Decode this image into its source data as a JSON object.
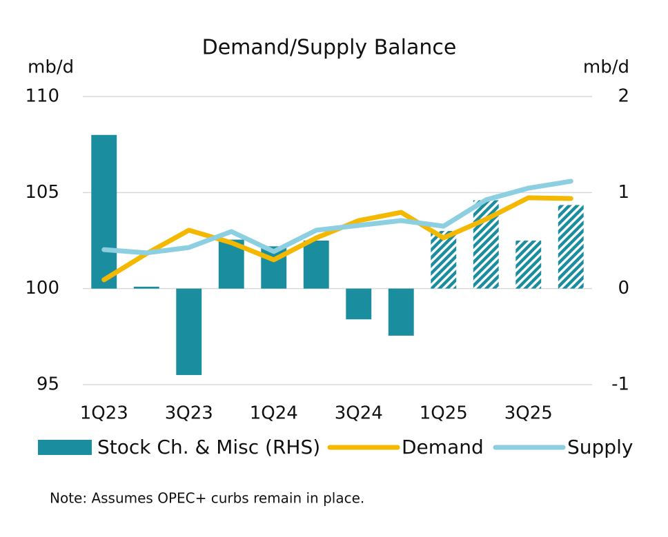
{
  "chart_data": {
    "type": "combo",
    "title": "Demand/Supply Balance",
    "ylabel": "mb/d",
    "y2label": "mb/d",
    "note": "Note: Assumes OPEC+ curbs remain in place.",
    "categories": [
      "1Q23",
      null,
      "3Q23",
      null,
      "1Q24",
      null,
      "3Q24",
      null,
      "1Q25",
      null,
      "3Q25",
      null
    ],
    "ylim": [
      95,
      110
    ],
    "yticks": [
      95,
      100,
      105,
      110
    ],
    "y2lim": [
      -1,
      2
    ],
    "y2ticks": [
      -1,
      0,
      1,
      2
    ],
    "grid": true,
    "legend": "bottom",
    "series": [
      {
        "name": "Stock Ch. & Misc (RHS)",
        "type": "bar",
        "axis": "y2",
        "color": "#1a8e9f",
        "values": [
          1.6,
          0.02,
          -0.9,
          0.51,
          0.44,
          0.5,
          -0.32,
          -0.49,
          0.6,
          0.92,
          0.5,
          0.87
        ],
        "hatched": [
          false,
          false,
          false,
          false,
          false,
          false,
          false,
          false,
          true,
          true,
          true,
          true
        ]
      },
      {
        "name": "Demand",
        "type": "line",
        "color": "#f5b800",
        "values": [
          100.46,
          101.82,
          103.04,
          102.39,
          101.5,
          102.64,
          103.54,
          103.97,
          102.64,
          103.61,
          104.73,
          104.69
        ]
      },
      {
        "name": "Supply",
        "type": "line",
        "color": "#8ccfe0",
        "values": [
          102.03,
          101.86,
          102.14,
          102.97,
          101.93,
          103.04,
          103.29,
          103.54,
          103.25,
          104.62,
          105.23,
          105.59
        ]
      }
    ]
  }
}
